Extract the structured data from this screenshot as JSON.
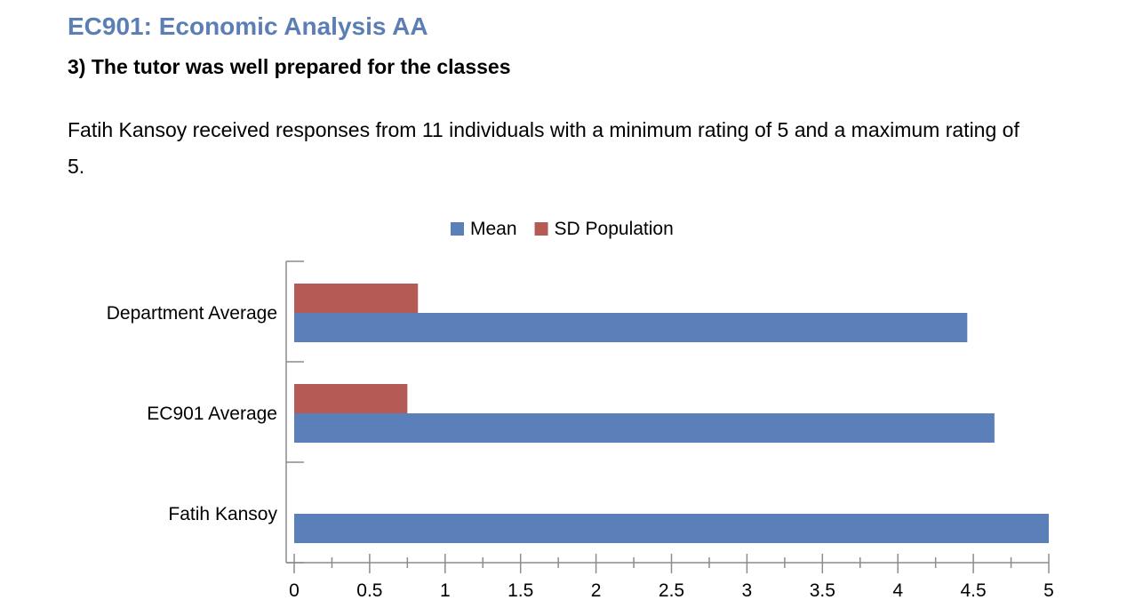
{
  "header": {
    "title": "EC901: Economic Analysis AA",
    "question": "3) The tutor was well prepared for the classes",
    "summary": "Fatih Kansoy received responses from 11 individuals with a minimum rating of 5 and a maximum rating of 5."
  },
  "chart_data": {
    "type": "bar",
    "orientation": "horizontal",
    "categories": [
      "Department Average",
      "EC901 Average",
      "Fatih Kansoy"
    ],
    "series": [
      {
        "name": "Mean",
        "color": "#5b7fb8",
        "values": [
          4.46,
          4.64,
          5.0
        ]
      },
      {
        "name": "SD Population",
        "color": "#b55a55",
        "values": [
          0.82,
          0.75,
          0
        ]
      }
    ],
    "xlim": [
      0,
      5
    ],
    "xticks": [
      "0",
      "0.5",
      "1",
      "1.5",
      "2",
      "2.5",
      "3",
      "3.5",
      "4",
      "4.5",
      "5"
    ],
    "legend": "top",
    "grid": false
  }
}
